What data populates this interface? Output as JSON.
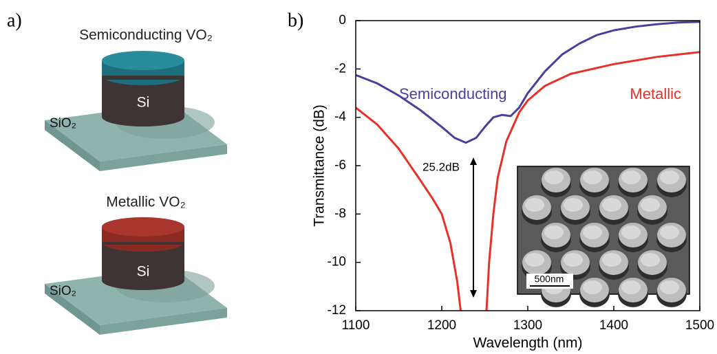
{
  "panel_a": {
    "label": "a)",
    "top": {
      "title": "Semiconducting VO₂",
      "pillar": "Si",
      "substrate": "SiO₂"
    },
    "bottom": {
      "title": "Metallic VO₂",
      "pillar": "Si",
      "substrate": "SiO₂"
    }
  },
  "chart_data": {
    "type": "line",
    "panel_label": "b)",
    "xlabel": "Wavelength (nm)",
    "ylabel": "Transmittance (dB)",
    "xlim": [
      1100,
      1500
    ],
    "ylim": [
      -12,
      0
    ],
    "xticks": [
      1100,
      1200,
      1300,
      1400,
      1500
    ],
    "yticks": [
      0,
      -2,
      -4,
      -6,
      -8,
      -10,
      -12
    ],
    "series": [
      {
        "name": "Semiconducting",
        "color": "#4b3f9e",
        "x": [
          1100,
          1125,
          1150,
          1175,
          1200,
          1215,
          1228,
          1240,
          1250,
          1260,
          1270,
          1280,
          1290,
          1300,
          1320,
          1340,
          1360,
          1380,
          1400,
          1425,
          1450,
          1475,
          1500
        ],
        "values": [
          -2.25,
          -2.6,
          -3.1,
          -3.7,
          -4.4,
          -4.85,
          -5.05,
          -4.85,
          -4.4,
          -4.0,
          -3.9,
          -3.95,
          -3.6,
          -3.0,
          -2.1,
          -1.4,
          -0.95,
          -0.6,
          -0.4,
          -0.25,
          -0.15,
          -0.08,
          -0.05
        ]
      },
      {
        "name": "Metallic",
        "color": "#e8302a",
        "x": [
          1100,
          1125,
          1150,
          1175,
          1190,
          1200,
          1210,
          1218,
          1222,
          null,
          1252,
          1255,
          1260,
          1265,
          1275,
          1290,
          1300,
          1320,
          1350,
          1400,
          1450,
          1500
        ],
        "values": [
          -3.6,
          -4.3,
          -5.3,
          -6.6,
          -7.4,
          -8.0,
          -9.2,
          -10.8,
          -12,
          null,
          -12,
          -10,
          -8,
          -6.5,
          -5,
          -3.8,
          -3.3,
          -2.7,
          -2.2,
          -1.8,
          -1.5,
          -1.3
        ]
      }
    ],
    "annotation": "25.2dB",
    "inset": {
      "scale_bar": "500nm"
    }
  }
}
